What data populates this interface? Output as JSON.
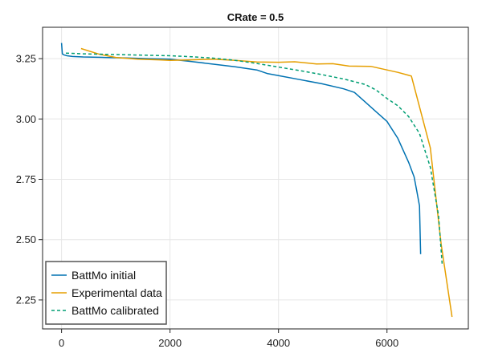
{
  "chart_data": {
    "type": "line",
    "title": "CRate = 0.5",
    "xlabel": "",
    "ylabel": "",
    "xlim": [
      -350,
      7500
    ],
    "ylim": [
      2.13,
      3.38
    ],
    "xticks": [
      0,
      2000,
      4000,
      6000
    ],
    "xtick_labels": [
      "0",
      "2000",
      "4000",
      "6000"
    ],
    "yticks": [
      2.25,
      2.5,
      2.75,
      3.0,
      3.25
    ],
    "ytick_labels": [
      "2.25",
      "2.50",
      "2.75",
      "3.00",
      "3.25"
    ],
    "grid": true,
    "legend_position": "bottom-left",
    "series": [
      {
        "name": "BattMo initial",
        "color": "#0072b2",
        "style": "solid",
        "x": [
          0,
          15,
          40,
          100,
          200,
          400,
          800,
          1200,
          1600,
          2000,
          2400,
          2800,
          3200,
          3600,
          3800,
          4000,
          4400,
          4800,
          5200,
          5400,
          5600,
          5800,
          6000,
          6200,
          6400,
          6500,
          6550,
          6600,
          6620
        ],
        "y": [
          3.315,
          3.27,
          3.266,
          3.262,
          3.259,
          3.257,
          3.255,
          3.253,
          3.25,
          3.248,
          3.238,
          3.227,
          3.216,
          3.203,
          3.188,
          3.18,
          3.163,
          3.146,
          3.125,
          3.11,
          3.07,
          3.03,
          2.99,
          2.92,
          2.82,
          2.76,
          2.7,
          2.64,
          2.44
        ]
      },
      {
        "name": "Experimental data",
        "color": "#e69f00",
        "style": "solid",
        "x": [
          360,
          700,
          1000,
          1400,
          1800,
          2000,
          2400,
          2800,
          3200,
          3600,
          4000,
          4300,
          4700,
          5000,
          5300,
          5700,
          6000,
          6200,
          6450,
          6800,
          7000,
          7200
        ],
        "y": [
          3.292,
          3.268,
          3.255,
          3.248,
          3.245,
          3.243,
          3.245,
          3.248,
          3.243,
          3.236,
          3.235,
          3.237,
          3.228,
          3.229,
          3.219,
          3.218,
          3.203,
          3.193,
          3.178,
          2.88,
          2.48,
          2.18
        ]
      },
      {
        "name": "BattMo calibrated",
        "color": "#009e73",
        "style": "dashed",
        "x": [
          80,
          400,
          800,
          1200,
          1600,
          2000,
          2400,
          2800,
          3200,
          3600,
          4000,
          4400,
          4800,
          5200,
          5600,
          5800,
          6000,
          6200,
          6400,
          6600,
          6800,
          6950,
          7020
        ],
        "y": [
          3.273,
          3.27,
          3.268,
          3.266,
          3.264,
          3.262,
          3.258,
          3.252,
          3.243,
          3.23,
          3.215,
          3.2,
          3.184,
          3.166,
          3.143,
          3.12,
          3.085,
          3.055,
          3.01,
          2.94,
          2.8,
          2.6,
          2.39
        ]
      }
    ]
  }
}
